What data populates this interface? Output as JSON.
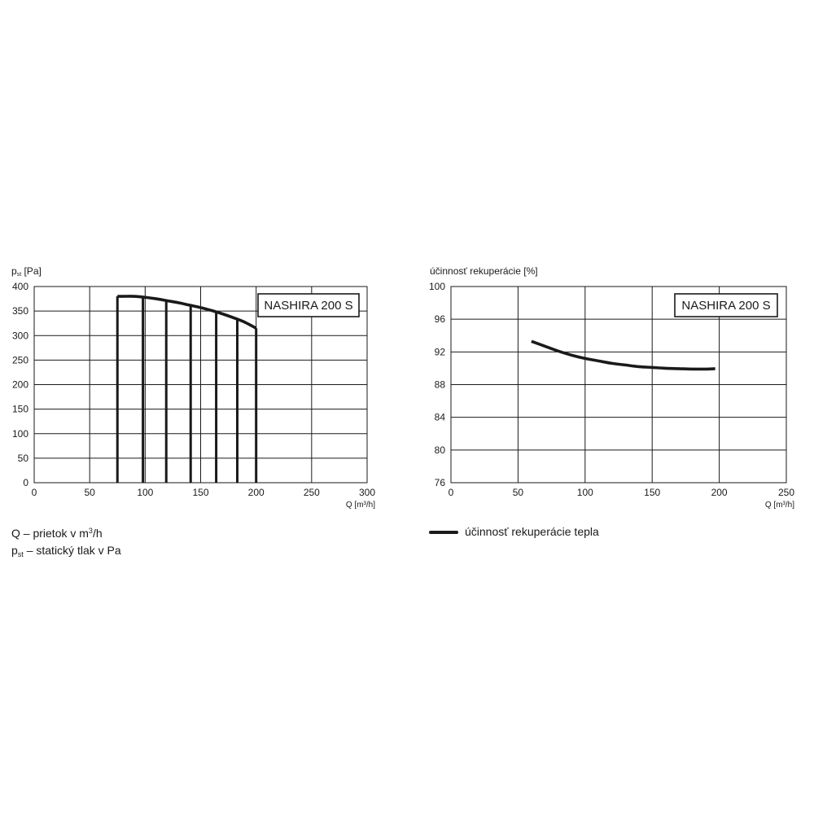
{
  "chart_data": [
    {
      "type": "line",
      "ylabel_main": "p",
      "ylabel_sub": "st",
      "ylabel_unit": " [Pa]",
      "xlabel": "Q [m³/h]",
      "box_label": "NASHIRA 200 S",
      "xlim": [
        0,
        300
      ],
      "ylim": [
        0,
        400
      ],
      "xticks": [
        0,
        50,
        100,
        150,
        200,
        250,
        300
      ],
      "yticks": [
        0,
        50,
        100,
        150,
        200,
        250,
        300,
        350,
        400
      ],
      "grid": true,
      "series": [
        {
          "x": [
            75,
            80,
            90,
            100,
            110,
            120,
            130,
            140,
            150,
            160,
            170,
            180,
            190,
            200
          ],
          "y": [
            380,
            380,
            380,
            378,
            375,
            371,
            367,
            362,
            357,
            351,
            344,
            336,
            327,
            315
          ]
        }
      ],
      "vertical_lines_x": [
        75,
        98,
        119,
        141,
        164,
        183,
        200
      ]
    },
    {
      "type": "line",
      "ylabel": "účinnosť rekuperácie [%]",
      "xlabel": "Q [m³/h]",
      "box_label": "NASHIRA 200 S",
      "xlim": [
        0,
        250
      ],
      "ylim": [
        76,
        100
      ],
      "xticks": [
        0,
        50,
        100,
        150,
        200,
        250
      ],
      "yticks": [
        76,
        80,
        84,
        88,
        92,
        96,
        100
      ],
      "grid": true,
      "series": [
        {
          "name": "účinnosť rekuperácie tepla",
          "x": [
            60,
            70,
            80,
            90,
            100,
            110,
            120,
            130,
            140,
            150,
            160,
            170,
            180,
            190,
            197
          ],
          "y": [
            93.3,
            92.7,
            92.1,
            91.6,
            91.2,
            90.9,
            90.6,
            90.4,
            90.2,
            90.1,
            90.0,
            89.95,
            89.9,
            89.9,
            89.95
          ]
        }
      ]
    }
  ],
  "notes": {
    "line1_prefix": "Q – prietok v m",
    "line1_sup": "3",
    "line1_suffix": "/h",
    "line2_main": "p",
    "line2_sub": "st",
    "line2_suffix": " – statický tlak v Pa"
  },
  "legend": {
    "label": "účinnosť rekuperácie tepla"
  }
}
